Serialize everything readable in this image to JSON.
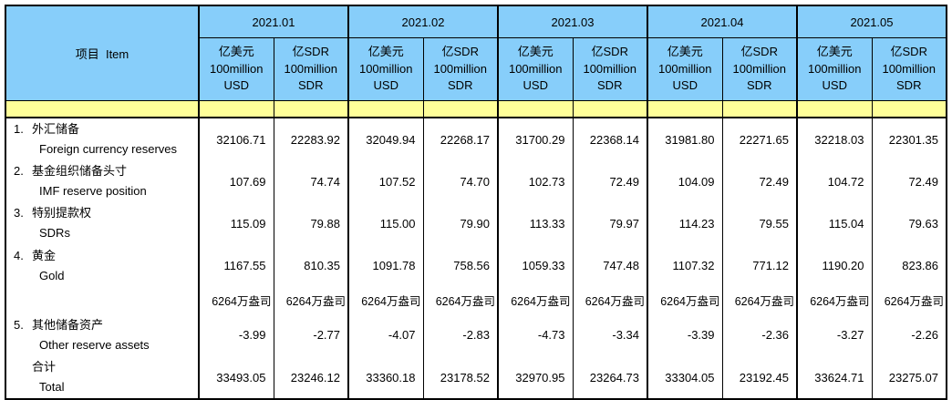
{
  "colors": {
    "header_blue": "#87CEFA",
    "band_yellow": "#FFFF99",
    "border": "#000000",
    "background": "#FFFFFF"
  },
  "chart_data": {
    "type": "table",
    "item_header": "项目  Item",
    "month_groups": [
      "2021.01",
      "2021.02",
      "2021.03",
      "2021.04",
      "2021.05"
    ],
    "subcolumns": {
      "usd": "亿美元\n100million\nUSD",
      "sdr": "亿SDR\n100million\nSDR"
    },
    "rows": [
      {
        "label_no": "1.",
        "label_cn": "外汇储备",
        "label_en": "Foreign currency reserves",
        "values": [
          "32106.71",
          "22283.92",
          "32049.94",
          "22268.17",
          "31700.29",
          "22368.14",
          "31981.80",
          "22271.65",
          "32218.03",
          "22301.35"
        ]
      },
      {
        "label_no": "2.",
        "label_cn": "基金组织储备头寸",
        "label_en": "IMF reserve position",
        "values": [
          "107.69",
          "74.74",
          "107.52",
          "74.70",
          "102.73",
          "72.49",
          "104.09",
          "72.49",
          "104.72",
          "72.49"
        ]
      },
      {
        "label_no": "3.",
        "label_cn": "特别提款权",
        "label_en": "SDRs",
        "values": [
          "115.09",
          "79.88",
          "115.00",
          "79.90",
          "113.33",
          "79.97",
          "114.23",
          "79.55",
          "115.04",
          "79.63"
        ]
      },
      {
        "label_no": "4.",
        "label_cn": "黄金",
        "label_en": "Gold",
        "values": [
          "1167.55",
          "810.35",
          "1091.78",
          "758.56",
          "1059.33",
          "747.48",
          "1107.32",
          "771.12",
          "1190.20",
          "823.86"
        ]
      },
      {
        "label_no": "",
        "label_cn": "",
        "label_en": "",
        "values": [
          "6264万盎司",
          "6264万盎司",
          "6264万盎司",
          "6264万盎司",
          "6264万盎司",
          "6264万盎司",
          "6264万盎司",
          "6264万盎司",
          "6264万盎司",
          "6264万盎司"
        ]
      },
      {
        "label_no": "5.",
        "label_cn": "其他储备资产",
        "label_en": "Other reserve assets",
        "values": [
          "-3.99",
          "-2.77",
          "-4.07",
          "-2.83",
          "-4.73",
          "-3.34",
          "-3.39",
          "-2.36",
          "-3.27",
          "-2.26"
        ]
      },
      {
        "label_no": "",
        "label_cn": "合计",
        "label_en": "Total",
        "values": [
          "33493.05",
          "23246.12",
          "33360.18",
          "23178.52",
          "32970.95",
          "23264.73",
          "33304.05",
          "23192.45",
          "33624.71",
          "23275.07"
        ]
      }
    ]
  }
}
